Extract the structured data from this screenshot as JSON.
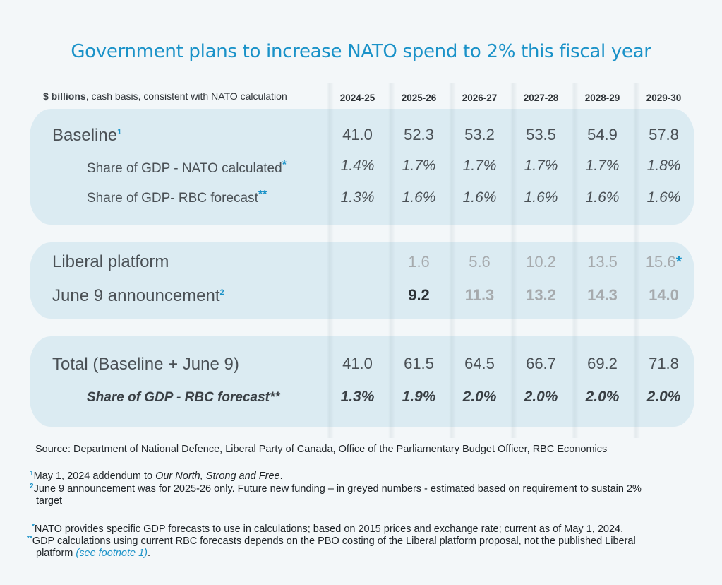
{
  "title": "Government plans to increase NATO spend to 2% this fiscal year",
  "units": {
    "bold": "$ billions",
    "rest": ", cash basis, consistent with NATO calculation"
  },
  "years": [
    "2024-25",
    "2025-26",
    "2026-27",
    "2027-28",
    "2028-29",
    "2029-30"
  ],
  "colors": {
    "accent": "#1a92c8",
    "panel": "#dbebf2",
    "background": "#f3f7f9",
    "grey_value": "#a6aaad"
  },
  "rows": {
    "baseline": {
      "label": "Baseline",
      "marker": "1",
      "values": [
        "41.0",
        "52.3",
        "53.2",
        "53.5",
        "54.9",
        "57.8"
      ]
    },
    "nato_share": {
      "label": "Share of GDP - NATO calculated",
      "marker": "*",
      "values": [
        "1.4%",
        "1.7%",
        "1.7%",
        "1.7%",
        "1.7%",
        "1.8%"
      ]
    },
    "rbc_share": {
      "label": "Share of GDP- RBC forecast",
      "marker": "**",
      "values": [
        "1.3%",
        "1.6%",
        "1.6%",
        "1.6%",
        "1.6%",
        "1.6%"
      ]
    },
    "liberal": {
      "label": "Liberal platform",
      "values": [
        "",
        "1.6",
        "5.6",
        "10.2",
        "13.5",
        "15.6"
      ],
      "last_marker": "*"
    },
    "june9": {
      "label": "June 9 announcement",
      "marker": "2",
      "values": [
        "",
        "9.2",
        "11.3",
        "13.2",
        "14.3",
        "14.0"
      ]
    },
    "total": {
      "label": "Total (Baseline + June 9)",
      "values": [
        "41.0",
        "61.5",
        "64.5",
        "66.7",
        "69.2",
        "71.8"
      ]
    },
    "total_share": {
      "label": "Share of GDP - RBC forecast**",
      "values": [
        "1.3%",
        "1.9%",
        "2.0%",
        "2.0%",
        "2.0%",
        "2.0%"
      ]
    }
  },
  "source": "Source: Department of National Defence, Liberal Party of Canada, Office of the Parliamentary Budget Officer, RBC Economics",
  "footnotes": {
    "f1": {
      "marker": "1",
      "pre": "May 1, 2024 addendum to ",
      "italic": "Our North, Strong and Free",
      "post": "."
    },
    "f2": {
      "marker": "2",
      "line1": "June 9 announcement was for 2025-26 only. Future new funding – in greyed numbers - estimated based on requirement to sustain 2%",
      "line2": "target"
    },
    "f3": {
      "marker": "*",
      "text": "NATO provides specific GDP forecasts to use in calculations; based on 2015 prices and exchange rate; current as of May 1, 2024."
    },
    "f4": {
      "marker": "**",
      "line1": "GDP calculations using current RBC forecasts depends on the PBO costing of the Liberal platform proposal, not the published Liberal",
      "line2_pre": "platform ",
      "line2_link": "(see footnote 1)",
      "line2_post": "."
    }
  }
}
